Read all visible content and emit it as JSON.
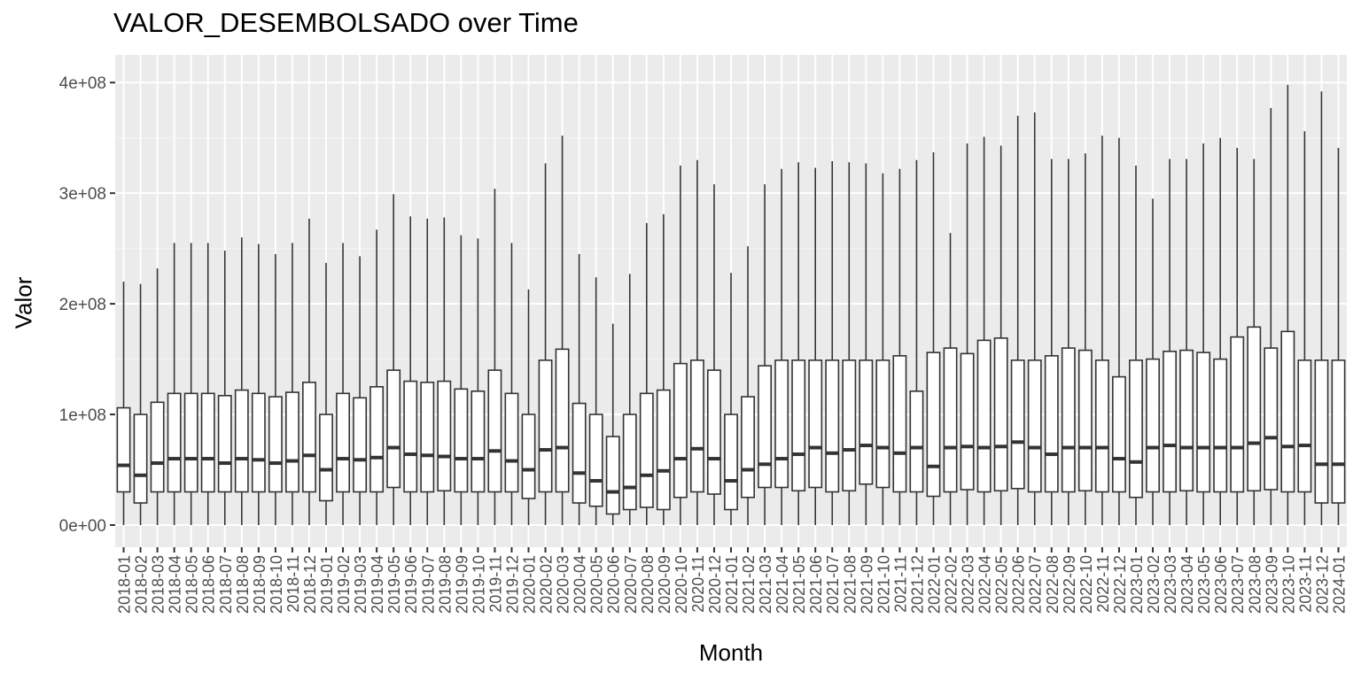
{
  "chart_data": {
    "type": "box",
    "title": "VALOR_DESEMBOLSADO over Time",
    "xlabel": "Month",
    "ylabel": "Valor",
    "ylim": [
      -20000000,
      425000000
    ],
    "yticks": [
      0,
      100000000,
      200000000,
      300000000,
      400000000
    ],
    "ytick_labels": [
      "0e+00",
      "1e+08",
      "2e+08",
      "3e+08",
      "4e+08"
    ],
    "grid": true,
    "categories": [
      "2018-01",
      "2018-02",
      "2018-03",
      "2018-04",
      "2018-05",
      "2018-06",
      "2018-07",
      "2018-08",
      "2018-09",
      "2018-10",
      "2018-11",
      "2018-12",
      "2019-01",
      "2019-02",
      "2019-03",
      "2019-04",
      "2019-05",
      "2019-06",
      "2019-07",
      "2019-08",
      "2019-09",
      "2019-10",
      "2019-11",
      "2019-12",
      "2020-01",
      "2020-02",
      "2020-03",
      "2020-04",
      "2020-05",
      "2020-06",
      "2020-07",
      "2020-08",
      "2020-09",
      "2020-10",
      "2020-11",
      "2020-12",
      "2021-01",
      "2021-02",
      "2021-03",
      "2021-04",
      "2021-05",
      "2021-06",
      "2021-07",
      "2021-08",
      "2021-09",
      "2021-10",
      "2021-11",
      "2021-12",
      "2022-01",
      "2022-02",
      "2022-03",
      "2022-04",
      "2022-05",
      "2022-06",
      "2022-07",
      "2022-08",
      "2022-09",
      "2022-10",
      "2022-11",
      "2022-12",
      "2023-01",
      "2023-02",
      "2023-03",
      "2023-04",
      "2023-05",
      "2023-06",
      "2023-07",
      "2023-08",
      "2023-09",
      "2023-10",
      "2023-11",
      "2023-12",
      "2024-01"
    ],
    "lower_whisker": [
      0,
      0,
      0,
      0,
      0,
      0,
      0,
      0,
      0,
      0,
      0,
      0,
      0,
      0,
      0,
      0,
      0,
      0,
      0,
      0,
      0,
      0,
      0,
      0,
      0,
      0,
      0,
      0,
      0,
      0,
      0,
      0,
      0,
      0,
      0,
      0,
      0,
      0,
      0,
      0,
      0,
      0,
      0,
      0,
      0,
      0,
      0,
      0,
      0,
      0,
      0,
      0,
      0,
      0,
      0,
      0,
      0,
      0,
      0,
      0,
      0,
      0,
      0,
      0,
      0,
      0,
      0,
      0,
      0,
      0,
      0,
      0,
      0
    ],
    "q1": [
      30000000,
      20000000,
      30000000,
      30000000,
      30000000,
      30000000,
      30000000,
      30000000,
      30000000,
      30000000,
      30000000,
      30000000,
      22000000,
      30000000,
      30000000,
      30000000,
      34000000,
      30000000,
      30000000,
      31000000,
      30000000,
      30000000,
      30000000,
      30000000,
      24000000,
      30000000,
      30000000,
      20000000,
      17000000,
      10000000,
      14000000,
      16000000,
      14000000,
      25000000,
      30000000,
      28000000,
      14000000,
      25000000,
      34000000,
      34000000,
      31000000,
      34000000,
      30000000,
      31000000,
      37000000,
      34000000,
      30000000,
      30000000,
      26000000,
      30000000,
      32000000,
      30000000,
      31000000,
      33000000,
      30000000,
      30000000,
      30000000,
      31000000,
      30000000,
      30000000,
      25000000,
      30000000,
      30000000,
      31000000,
      30000000,
      30000000,
      30000000,
      31000000,
      32000000,
      30000000,
      30000000,
      20000000,
      20000000
    ],
    "median": [
      54000000,
      45000000,
      56000000,
      60000000,
      60000000,
      60000000,
      56000000,
      60000000,
      59000000,
      56000000,
      58000000,
      63000000,
      50000000,
      60000000,
      59000000,
      61000000,
      70000000,
      64000000,
      63000000,
      62000000,
      60000000,
      60000000,
      67000000,
      58000000,
      50000000,
      68000000,
      70000000,
      47000000,
      40000000,
      30000000,
      34000000,
      45000000,
      49000000,
      60000000,
      69000000,
      60000000,
      40000000,
      50000000,
      55000000,
      60000000,
      64000000,
      70000000,
      65000000,
      68000000,
      72000000,
      70000000,
      65000000,
      70000000,
      53000000,
      70000000,
      71000000,
      70000000,
      71000000,
      75000000,
      70000000,
      64000000,
      70000000,
      70000000,
      70000000,
      60000000,
      57000000,
      70000000,
      72000000,
      70000000,
      70000000,
      70000000,
      70000000,
      74000000,
      79000000,
      71000000,
      72000000,
      55000000,
      55000000
    ],
    "q3": [
      106000000,
      100000000,
      111000000,
      119000000,
      119000000,
      119000000,
      117000000,
      122000000,
      119000000,
      116000000,
      120000000,
      129000000,
      100000000,
      119000000,
      115000000,
      125000000,
      140000000,
      130000000,
      129000000,
      130000000,
      123000000,
      121000000,
      140000000,
      119000000,
      100000000,
      149000000,
      159000000,
      110000000,
      100000000,
      80000000,
      100000000,
      119000000,
      122000000,
      146000000,
      149000000,
      140000000,
      100000000,
      116000000,
      144000000,
      149000000,
      149000000,
      149000000,
      149000000,
      149000000,
      149000000,
      149000000,
      153000000,
      121000000,
      156000000,
      160000000,
      155000000,
      167000000,
      169000000,
      149000000,
      149000000,
      153000000,
      160000000,
      158000000,
      149000000,
      134000000,
      149000000,
      150000000,
      157000000,
      158000000,
      156000000,
      150000000,
      170000000,
      179000000,
      160000000,
      175000000,
      149000000,
      149000000,
      149000000
    ],
    "upper_whisker": [
      220000000,
      218000000,
      232000000,
      255000000,
      255000000,
      255000000,
      248000000,
      260000000,
      254000000,
      245000000,
      255000000,
      277000000,
      237000000,
      255000000,
      243000000,
      267000000,
      299000000,
      279000000,
      277000000,
      278000000,
      262000000,
      259000000,
      304000000,
      255000000,
      213000000,
      327000000,
      352000000,
      245000000,
      224000000,
      182000000,
      227000000,
      273000000,
      281000000,
      325000000,
      330000000,
      308000000,
      228000000,
      252000000,
      308000000,
      322000000,
      328000000,
      323000000,
      329000000,
      328000000,
      327000000,
      318000000,
      322000000,
      330000000,
      337000000,
      264000000,
      345000000,
      351000000,
      343000000,
      370000000,
      373000000,
      331000000,
      331000000,
      336000000,
      352000000,
      350000000,
      325000000,
      295000000,
      331000000,
      331000000,
      345000000,
      350000000,
      341000000,
      331000000,
      377000000,
      398000000,
      356000000,
      392000000,
      341000000
    ]
  }
}
